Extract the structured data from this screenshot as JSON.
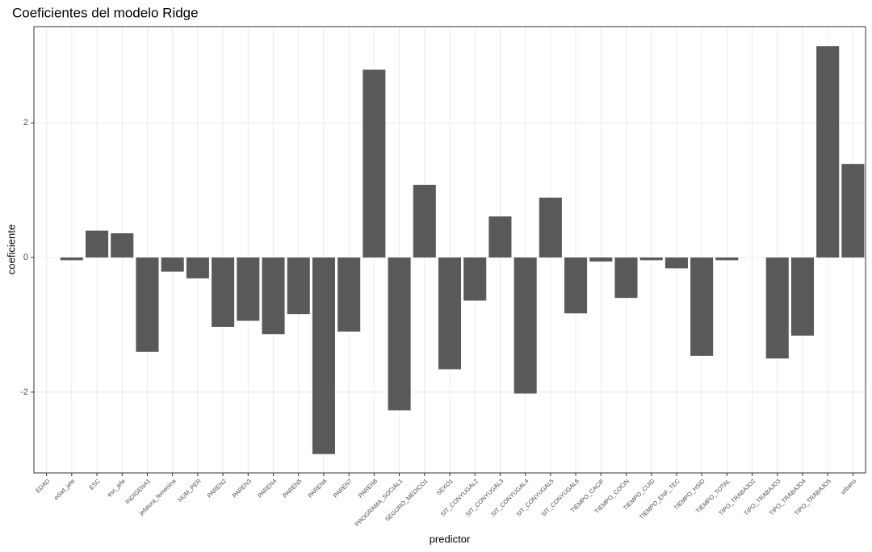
{
  "chart_data": {
    "type": "bar",
    "title": "Coeficientes del modelo Ridge",
    "x_label": "predictor",
    "y_label": "coeficiente",
    "categories": [
      "EDAD",
      "edad_jefe",
      "ESC",
      "esc_jefe",
      "INDIGENA1",
      "jefatura_femenina",
      "NUM_PER",
      "PAREN2",
      "PAREN3",
      "PAREN4",
      "PAREN5",
      "PAREN6",
      "PAREN7",
      "PAREN8",
      "PROGRAMA_SOCIAL1",
      "SEGURO_MEDICO1",
      "SEXO1",
      "SIT_CONYUGAL2",
      "SIT_CONYUGAL3",
      "SIT_CONYUGAL4",
      "SIT_CONYUGAL5",
      "SIT_CONYUGAL6",
      "TIEMPO_CACIF",
      "TIEMPO_COCIN",
      "TIEMPO_CUID",
      "TIEMPO_ENF_TEC",
      "TIEMPO_HSID",
      "TIEMPO_TOTAL",
      "TIPO_TRABAJO2",
      "TIPO_TRABAJO3",
      "TIPO_TRABAJO4",
      "TIPO_TRABAJO5",
      "urbano"
    ],
    "values": [
      0,
      -0.04,
      0.4,
      0.36,
      -1.4,
      -0.21,
      -0.31,
      -1.03,
      -0.94,
      -1.14,
      -0.84,
      -2.92,
      -1.1,
      2.79,
      -2.27,
      1.08,
      -1.66,
      -0.64,
      0.61,
      -2.02,
      0.89,
      -0.83,
      -0.06,
      -0.6,
      -0.04,
      -0.16,
      -1.46,
      -0.04,
      0,
      -1.5,
      -1.16,
      3.14,
      1.39
    ],
    "color": "#595959",
    "ylim": [
      -3.2,
      3.43
    ],
    "yticks": [
      -2,
      0,
      2
    ],
    "grid": true
  }
}
